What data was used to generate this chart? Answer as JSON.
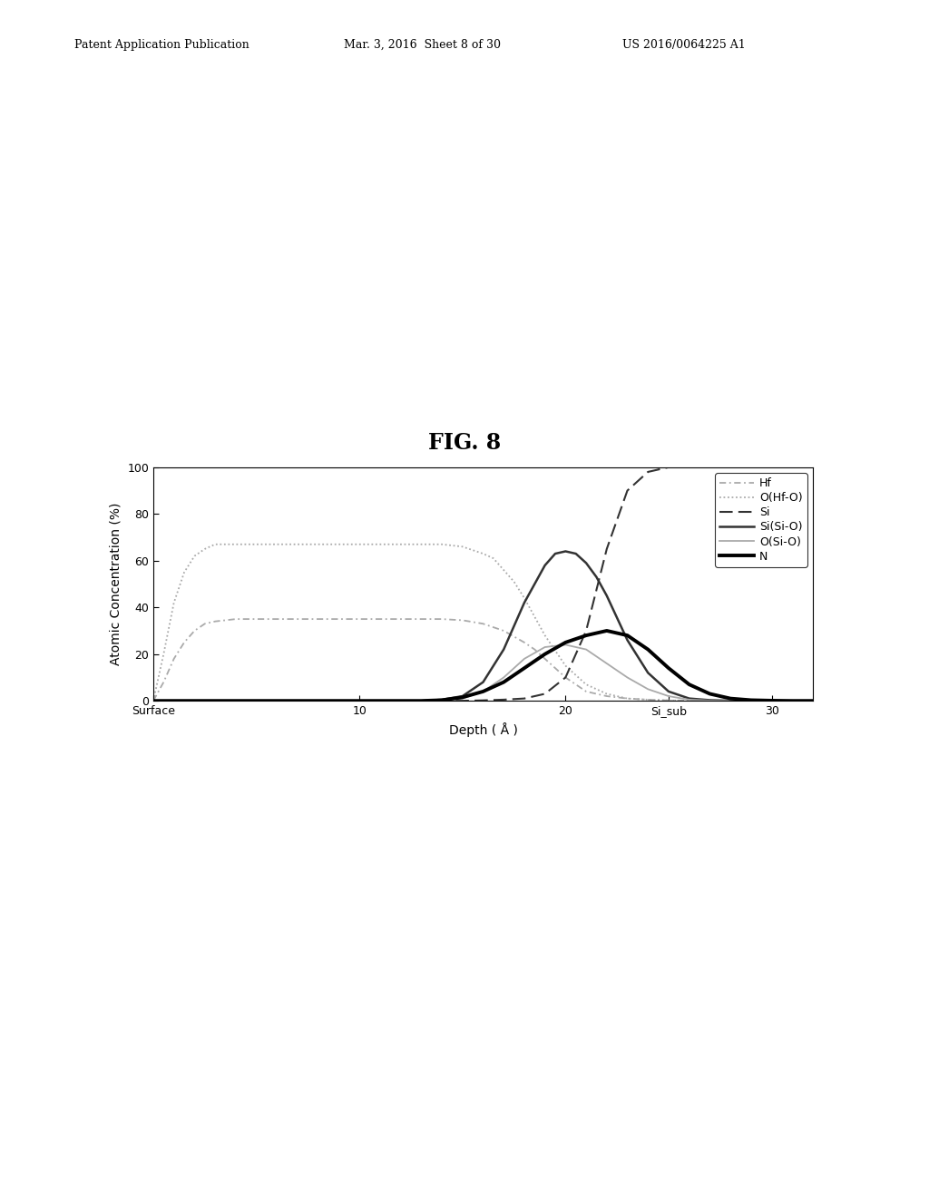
{
  "title": "FIG. 8",
  "header_left": "Patent Application Publication",
  "header_center": "Mar. 3, 2016  Sheet 8 of 30",
  "header_right": "US 2016/0064225 A1",
  "xlabel": "Depth ( Å )",
  "ylabel": "Atomic Concentration (%)",
  "xlim": [
    0,
    32
  ],
  "ylim": [
    0,
    100
  ],
  "yticks": [
    0,
    20,
    40,
    60,
    80,
    100
  ],
  "xticks": [
    0,
    10,
    20,
    25,
    30
  ],
  "xticklabels": [
    "Surface",
    "10",
    "20",
    "Si_sub",
    "30"
  ],
  "background_color": "#ffffff",
  "curves": {
    "Hf": {
      "style": "dashdot",
      "color": "#aaaaaa",
      "linewidth": 1.3,
      "x": [
        0,
        0.5,
        1,
        1.5,
        2,
        2.5,
        3,
        3.5,
        4,
        5,
        6,
        7,
        8,
        9,
        10,
        11,
        12,
        13,
        14,
        15,
        16,
        17,
        18,
        18.5,
        19,
        19.5,
        20,
        20.5,
        21,
        22,
        23,
        24,
        25,
        26,
        27,
        28,
        29,
        30,
        31,
        32
      ],
      "y": [
        0,
        8,
        18,
        25,
        30,
        33,
        34,
        34.5,
        35,
        35,
        35,
        35,
        35,
        35,
        35,
        35,
        35,
        35,
        35,
        34.5,
        33,
        30,
        25,
        22,
        18,
        14,
        10,
        7,
        4,
        2,
        1,
        0.5,
        0.2,
        0.1,
        0,
        0,
        0,
        0,
        0,
        0
      ]
    },
    "O(Hf-O)": {
      "style": "dotted",
      "color": "#aaaaaa",
      "linewidth": 1.3,
      "x": [
        0,
        0.5,
        1,
        1.5,
        2,
        2.5,
        3,
        3.5,
        4,
        5,
        6,
        7,
        8,
        9,
        10,
        11,
        12,
        13,
        14,
        15,
        16,
        16.5,
        17,
        17.5,
        18,
        18.5,
        19,
        20,
        21,
        22,
        23,
        24,
        25,
        26,
        27,
        28,
        29,
        30,
        31,
        32
      ],
      "y": [
        0,
        20,
        42,
        55,
        62,
        65,
        67,
        67,
        67,
        67,
        67,
        67,
        67,
        67,
        67,
        67,
        67,
        67,
        67,
        66,
        63,
        61,
        56,
        51,
        44,
        36,
        28,
        15,
        7,
        3,
        1,
        0.5,
        0.2,
        0.1,
        0,
        0,
        0,
        0,
        0,
        0
      ]
    },
    "Si": {
      "style": "dashed",
      "color": "#333333",
      "linewidth": 1.5,
      "x": [
        0,
        5,
        10,
        14,
        15,
        16,
        17,
        18,
        19,
        20,
        21,
        22,
        23,
        24,
        25,
        26,
        27,
        28,
        29,
        30,
        31,
        32
      ],
      "y": [
        0,
        0,
        0,
        0,
        0,
        0.2,
        0.5,
        1,
        3,
        10,
        30,
        65,
        90,
        98,
        100,
        100,
        100,
        100,
        100,
        100,
        100,
        100
      ]
    },
    "Si(Si-O)": {
      "style": "solid",
      "color": "#333333",
      "linewidth": 1.8,
      "x": [
        0,
        5,
        10,
        13,
        14,
        15,
        16,
        17,
        18,
        19,
        19.5,
        20,
        20.5,
        21,
        21.5,
        22,
        23,
        24,
        25,
        26,
        27,
        28,
        29,
        30,
        31,
        32
      ],
      "y": [
        0,
        0,
        0,
        0,
        0.5,
        2,
        8,
        22,
        42,
        58,
        63,
        64,
        63,
        59,
        53,
        45,
        26,
        12,
        4,
        1,
        0.3,
        0.1,
        0,
        0,
        0,
        0
      ]
    },
    "O(Si-O)": {
      "style": "solid",
      "color": "#aaaaaa",
      "linewidth": 1.3,
      "x": [
        0,
        5,
        10,
        13,
        14,
        15,
        16,
        17,
        18,
        19,
        20,
        21,
        22,
        23,
        24,
        25,
        26,
        27,
        28,
        29,
        30,
        31,
        32
      ],
      "y": [
        0,
        0,
        0,
        0,
        0.2,
        1,
        4,
        10,
        18,
        23,
        24,
        22,
        16,
        10,
        5,
        2,
        0.5,
        0.1,
        0,
        0,
        0,
        0,
        0
      ]
    },
    "N": {
      "style": "solid",
      "color": "#000000",
      "linewidth": 2.8,
      "x": [
        0,
        5,
        10,
        13,
        14,
        15,
        16,
        17,
        18,
        19,
        20,
        21,
        22,
        23,
        24,
        25,
        26,
        27,
        28,
        29,
        30,
        31,
        32
      ],
      "y": [
        0,
        0,
        0,
        0,
        0.3,
        1.5,
        4,
        8,
        14,
        20,
        25,
        28,
        30,
        28,
        22,
        14,
        7,
        3,
        1,
        0.3,
        0.1,
        0,
        0
      ]
    }
  }
}
